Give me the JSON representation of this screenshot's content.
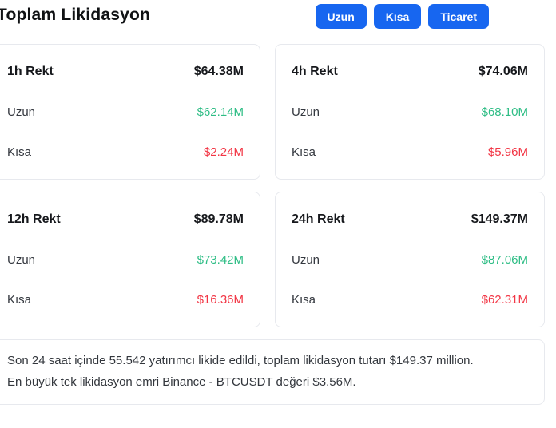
{
  "header": {
    "title": "Toplam Likidasyon",
    "buttons": [
      {
        "label": "Uzun"
      },
      {
        "label": "Kısa"
      },
      {
        "label": "Ticaret"
      }
    ]
  },
  "cards": [
    {
      "period": "1h Rekt",
      "total": "$64.38M",
      "long_label": "Uzun",
      "long_value": "$62.14M",
      "short_label": "Kısa",
      "short_value": "$2.24M"
    },
    {
      "period": "4h Rekt",
      "total": "$74.06M",
      "long_label": "Uzun",
      "long_value": "$68.10M",
      "short_label": "Kısa",
      "short_value": "$5.96M"
    },
    {
      "period": "12h Rekt",
      "total": "$89.78M",
      "long_label": "Uzun",
      "long_value": "$73.42M",
      "short_label": "Kısa",
      "short_value": "$16.36M"
    },
    {
      "period": "24h Rekt",
      "total": "$149.37M",
      "long_label": "Uzun",
      "long_value": "$87.06M",
      "short_label": "Kısa",
      "short_value": "$62.31M"
    }
  ],
  "summary": {
    "line1": "Son 24 saat içinde 55.542 yatırımcı likide edildi, toplam likidasyon tutarı $149.37 million.",
    "line2": "En büyük tek likidasyon emri Binance - BTCUSDT değeri $3.56M."
  },
  "colors": {
    "accent_blue": "#1766f0",
    "positive_green": "#2ebd85",
    "negative_red": "#f23645"
  }
}
